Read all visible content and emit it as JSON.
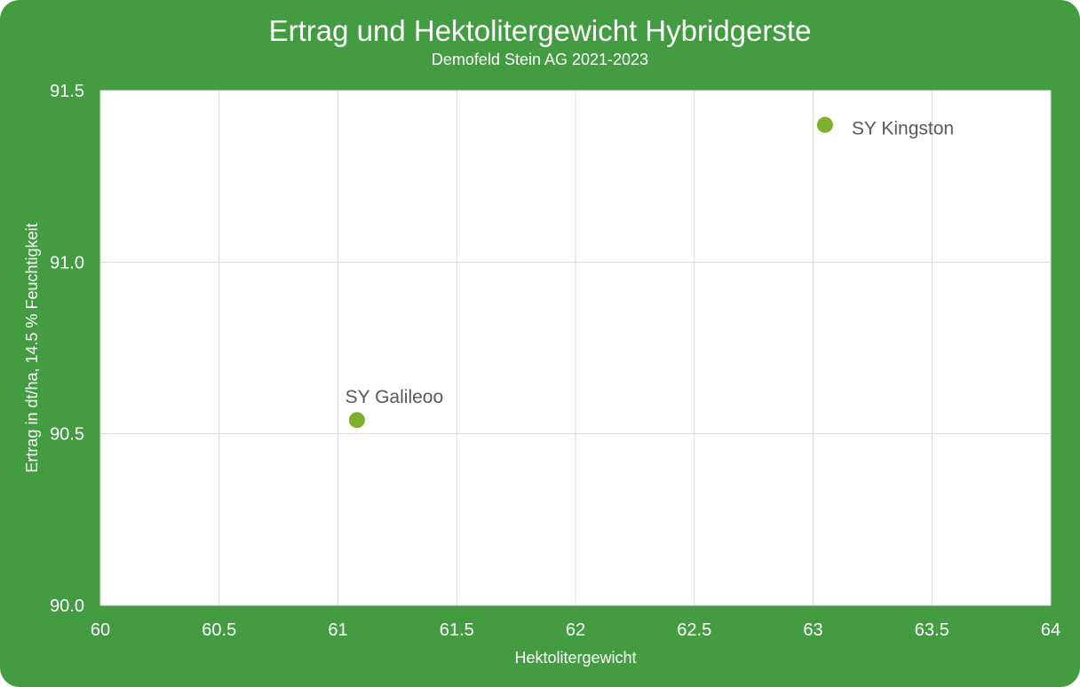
{
  "chart_data": {
    "type": "scatter",
    "title": "Ertrag und Hektolitergewicht Hybridgerste",
    "subtitle": "Demofeld Stein AG 2021-2023",
    "xlabel": "Hektolitergewicht",
    "ylabel": "Ertrag in dt/ha, 14.5 % Feuchtigkeit",
    "xlim": [
      60,
      64
    ],
    "ylim": [
      90.0,
      91.5
    ],
    "x_ticks": [
      "60",
      "60.5",
      "61",
      "61.5",
      "62",
      "62.5",
      "63",
      "63.5",
      "64"
    ],
    "x_tick_values": [
      60,
      60.5,
      61,
      61.5,
      62,
      62.5,
      63,
      63.5,
      64
    ],
    "y_ticks": [
      "90.0",
      "90.5",
      "91.0",
      "91.5"
    ],
    "y_tick_values": [
      90.0,
      90.5,
      91.0,
      91.5
    ],
    "grid": true,
    "legend": "none",
    "colors": {
      "background": "#439c42",
      "plot": "#ffffff",
      "point": "#7db02c",
      "grid": "#d9d9d9",
      "label": "#595959"
    },
    "points": [
      {
        "label": "SY Galileoo",
        "x": 61.08,
        "y": 90.54,
        "label_position": "above"
      },
      {
        "label": "SY Kingston",
        "x": 63.05,
        "y": 91.4,
        "label_position": "right"
      }
    ]
  }
}
